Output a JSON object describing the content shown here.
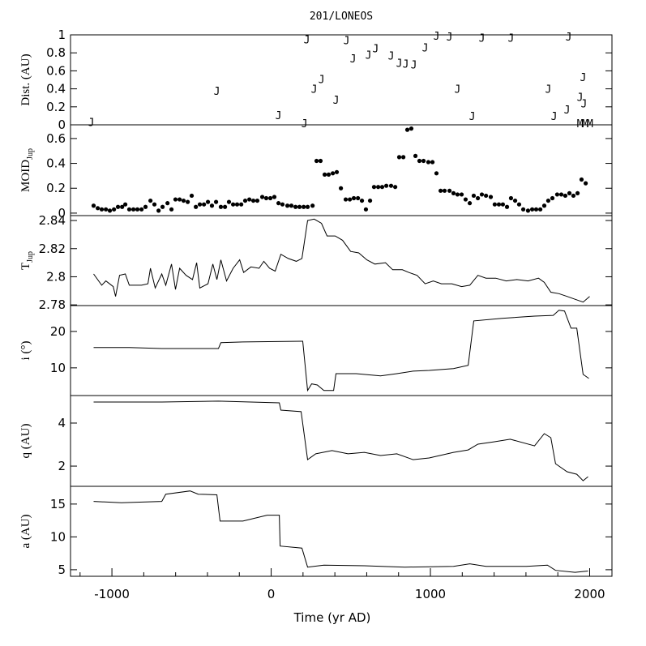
{
  "chart_data": [
    {
      "type": "scatter",
      "title": "201/LONEOS",
      "ylabel": "Dist. (AU)",
      "xlim": [
        -1260,
        2140
      ],
      "ylim": [
        0,
        1
      ],
      "yticks": [
        0,
        0.2,
        0.4,
        0.6,
        0.8,
        1
      ],
      "series": [
        {
          "name": "J",
          "color": "#000000",
          "x": [
            -1130,
            -341,
            46,
            209,
            224,
            270,
            316,
            407,
            473,
            514,
            611,
            656,
            753,
            804,
            845,
            896,
            967,
            1038,
            1120,
            1170,
            1262,
            1323,
            1506,
            1740,
            1776,
            1858,
            1868,
            1939,
            1959,
            1964
          ],
          "values": [
            0.03,
            0.38,
            0.11,
            0.02,
            0.95,
            0.4,
            0.51,
            0.28,
            0.94,
            0.74,
            0.78,
            0.85,
            0.77,
            0.69,
            0.68,
            0.67,
            0.86,
            0.99,
            0.98,
            0.4,
            0.1,
            0.97,
            0.97,
            0.4,
            0.1,
            0.17,
            0.98,
            0.31,
            0.53,
            0.24
          ]
        },
        {
          "name": "M",
          "color": "#000000",
          "x": [
            1940,
            1972,
            2002
          ],
          "values": [
            0.02,
            0.02,
            0.02
          ]
        }
      ]
    },
    {
      "type": "scatter",
      "ylabel": "MOID",
      "ylabel_sub": "Jup",
      "xlim": [
        -1260,
        2140
      ],
      "ylim": [
        -0.02,
        0.71
      ],
      "yticks": [
        0,
        0.2,
        0.4,
        0.6
      ],
      "series": [
        {
          "color": "#000000",
          "x": [
            -1115,
            -1089,
            -1064,
            -1038,
            -1013,
            -987,
            -962,
            -936,
            -916,
            -891,
            -865,
            -840,
            -814,
            -789,
            -758,
            -733,
            -707,
            -682,
            -651,
            -626,
            -601,
            -575,
            -550,
            -524,
            -499,
            -473,
            -448,
            -422,
            -397,
            -372,
            -346,
            -316,
            -290,
            -265,
            -239,
            -214,
            -188,
            -163,
            -137,
            -112,
            -87,
            -56,
            -31,
            -5,
            20,
            46,
            71,
            102,
            127,
            153,
            178,
            204,
            229,
            260,
            285,
            310,
            336,
            361,
            387,
            412,
            438,
            468,
            494,
            519,
            545,
            570,
            595,
            621,
            646,
            672,
            697,
            723,
            753,
            779,
            804,
            830,
            855,
            880,
            906,
            931,
            957,
            987,
            1013,
            1038,
            1064,
            1089,
            1120,
            1145,
            1170,
            1196,
            1221,
            1247,
            1272,
            1298,
            1323,
            1349,
            1379,
            1404,
            1430,
            1455,
            1481,
            1506,
            1532,
            1557,
            1583,
            1613,
            1639,
            1664,
            1690,
            1715,
            1740,
            1766,
            1796,
            1822,
            1847,
            1873,
            1898,
            1924,
            1949,
            1975
          ],
          "values": [
            0.06,
            0.04,
            0.03,
            0.03,
            0.02,
            0.03,
            0.05,
            0.05,
            0.07,
            0.03,
            0.03,
            0.03,
            0.03,
            0.05,
            0.1,
            0.07,
            0.02,
            0.05,
            0.08,
            0.03,
            0.11,
            0.11,
            0.1,
            0.09,
            0.14,
            0.05,
            0.07,
            0.07,
            0.09,
            0.06,
            0.09,
            0.05,
            0.05,
            0.09,
            0.07,
            0.07,
            0.07,
            0.1,
            0.11,
            0.1,
            0.1,
            0.13,
            0.12,
            0.12,
            0.13,
            0.08,
            0.07,
            0.06,
            0.06,
            0.05,
            0.05,
            0.05,
            0.05,
            0.06,
            0.42,
            0.42,
            0.31,
            0.31,
            0.32,
            0.33,
            0.2,
            0.11,
            0.11,
            0.12,
            0.12,
            0.1,
            0.03,
            0.1,
            0.21,
            0.21,
            0.21,
            0.22,
            0.22,
            0.21,
            0.45,
            0.45,
            0.67,
            0.68,
            0.46,
            0.42,
            0.42,
            0.41,
            0.41,
            0.32,
            0.18,
            0.18,
            0.18,
            0.16,
            0.15,
            0.15,
            0.11,
            0.08,
            0.14,
            0.12,
            0.15,
            0.14,
            0.13,
            0.07,
            0.07,
            0.07,
            0.05,
            0.12,
            0.1,
            0.07,
            0.03,
            0.02,
            0.03,
            0.03,
            0.03,
            0.06,
            0.1,
            0.12,
            0.15,
            0.15,
            0.14,
            0.16,
            0.14,
            0.16,
            0.27,
            0.24
          ]
        }
      ]
    },
    {
      "type": "line",
      "ylabel": "T",
      "ylabel_sub": "Jup",
      "xlim": [
        -1260,
        2140
      ],
      "ylim": [
        2.7795,
        2.8435
      ],
      "yticks": [
        2.78,
        2.8,
        2.82,
        2.84
      ],
      "series": [
        {
          "color": "#000000",
          "x": [
            -1115,
            -1064,
            -1038,
            -992,
            -977,
            -952,
            -916,
            -891,
            -814,
            -774,
            -758,
            -728,
            -687,
            -662,
            -626,
            -601,
            -575,
            -534,
            -494,
            -468,
            -448,
            -397,
            -366,
            -341,
            -316,
            -280,
            -239,
            -198,
            -173,
            -127,
            -76,
            -46,
            -10,
            25,
            61,
            107,
            158,
            193,
            229,
            270,
            316,
            351,
            402,
            448,
            499,
            550,
            601,
            651,
            718,
            763,
            824,
            865,
            916,
            967,
            1018,
            1069,
            1135,
            1196,
            1247,
            1298,
            1349,
            1410,
            1476,
            1542,
            1613,
            1679,
            1715,
            1756,
            1807,
            1858,
            1908,
            1959,
            2000
          ],
          "values": [
            2.802,
            2.794,
            2.797,
            2.793,
            2.786,
            2.801,
            2.802,
            2.794,
            2.794,
            2.795,
            2.806,
            2.792,
            2.802,
            2.794,
            2.809,
            2.791,
            2.806,
            2.801,
            2.798,
            2.81,
            2.792,
            2.795,
            2.809,
            2.798,
            2.812,
            2.797,
            2.806,
            2.812,
            2.803,
            2.807,
            2.806,
            2.811,
            2.806,
            2.804,
            2.816,
            2.813,
            2.811,
            2.813,
            2.84,
            2.841,
            2.838,
            2.829,
            2.829,
            2.826,
            2.818,
            2.817,
            2.812,
            2.809,
            2.81,
            2.805,
            2.805,
            2.803,
            2.801,
            2.795,
            2.797,
            2.795,
            2.795,
            2.793,
            2.794,
            2.801,
            2.799,
            2.799,
            2.797,
            2.798,
            2.797,
            2.799,
            2.796,
            2.789,
            2.788,
            2.786,
            2.784,
            2.782,
            2.786
          ]
        }
      ]
    },
    {
      "type": "line",
      "ylabel": "i (°)",
      "xlim": [
        -1260,
        2140
      ],
      "ylim": [
        2.4,
        27.1
      ],
      "yticks": [
        10,
        20
      ],
      "series": [
        {
          "color": "#000000",
          "x": [
            -1115,
            -891,
            -687,
            -331,
            -316,
            -178,
            193,
            198,
            229,
            254,
            290,
            331,
            392,
            407,
            534,
            687,
            789,
            891,
            992,
            1145,
            1237,
            1272,
            1450,
            1654,
            1771,
            1807,
            1842,
            1883,
            1919,
            1959,
            1995
          ],
          "values": [
            15.6,
            15.6,
            15.3,
            15.3,
            16.9,
            17.1,
            17.3,
            17.3,
            3.8,
            5.6,
            5.3,
            3.8,
            3.8,
            8.4,
            8.4,
            7.8,
            8.4,
            9.1,
            9.3,
            9.8,
            10.7,
            22.9,
            23.6,
            24.2,
            24.4,
            25.8,
            25.6,
            20.9,
            20.9,
            8.2,
            7.1
          ]
        }
      ]
    },
    {
      "type": "line",
      "ylabel": "q (AU)",
      "xlim": [
        -1260,
        2140
      ],
      "ylim": [
        1.06,
        5.28
      ],
      "yticks": [
        2,
        4
      ],
      "series": [
        {
          "color": "#000000",
          "x": [
            -1115,
            -687,
            -331,
            51,
            61,
            188,
            229,
            280,
            382,
            483,
            585,
            687,
            789,
            891,
            992,
            1145,
            1237,
            1298,
            1399,
            1501,
            1654,
            1715,
            1756,
            1786,
            1858,
            1919,
            1959,
            1990
          ],
          "values": [
            4.98,
            4.98,
            5.02,
            4.94,
            4.6,
            4.53,
            2.3,
            2.57,
            2.72,
            2.57,
            2.64,
            2.49,
            2.57,
            2.3,
            2.38,
            2.64,
            2.75,
            3.02,
            3.13,
            3.25,
            2.94,
            3.51,
            3.32,
            2.11,
            1.74,
            1.62,
            1.32,
            1.51
          ]
        }
      ]
    },
    {
      "type": "line",
      "ylabel": "a (AU)",
      "xlabel": "Time (yr AD)",
      "xlim": [
        -1260,
        2140
      ],
      "ylim": [
        4.0,
        17.7
      ],
      "yticks": [
        5,
        10,
        15
      ],
      "xticks": [
        -1000,
        0,
        1000,
        2000
      ],
      "xminor": [
        -1200,
        -800,
        -600,
        -400,
        -200,
        200,
        400,
        600,
        800,
        1200,
        1400,
        1600,
        1800
      ],
      "series": [
        {
          "color": "#000000",
          "x": [
            -1115,
            -941,
            -687,
            -662,
            -509,
            -458,
            -341,
            -321,
            -178,
            -25,
            51,
            56,
            193,
            229,
            331,
            585,
            840,
            1145,
            1247,
            1349,
            1603,
            1735,
            1786,
            1908,
            1990
          ],
          "values": [
            15.4,
            15.2,
            15.4,
            16.5,
            17.0,
            16.5,
            16.4,
            12.4,
            12.4,
            13.3,
            13.3,
            8.6,
            8.3,
            5.4,
            5.7,
            5.6,
            5.4,
            5.5,
            5.9,
            5.5,
            5.5,
            5.7,
            4.9,
            4.6,
            4.8
          ]
        }
      ]
    }
  ]
}
